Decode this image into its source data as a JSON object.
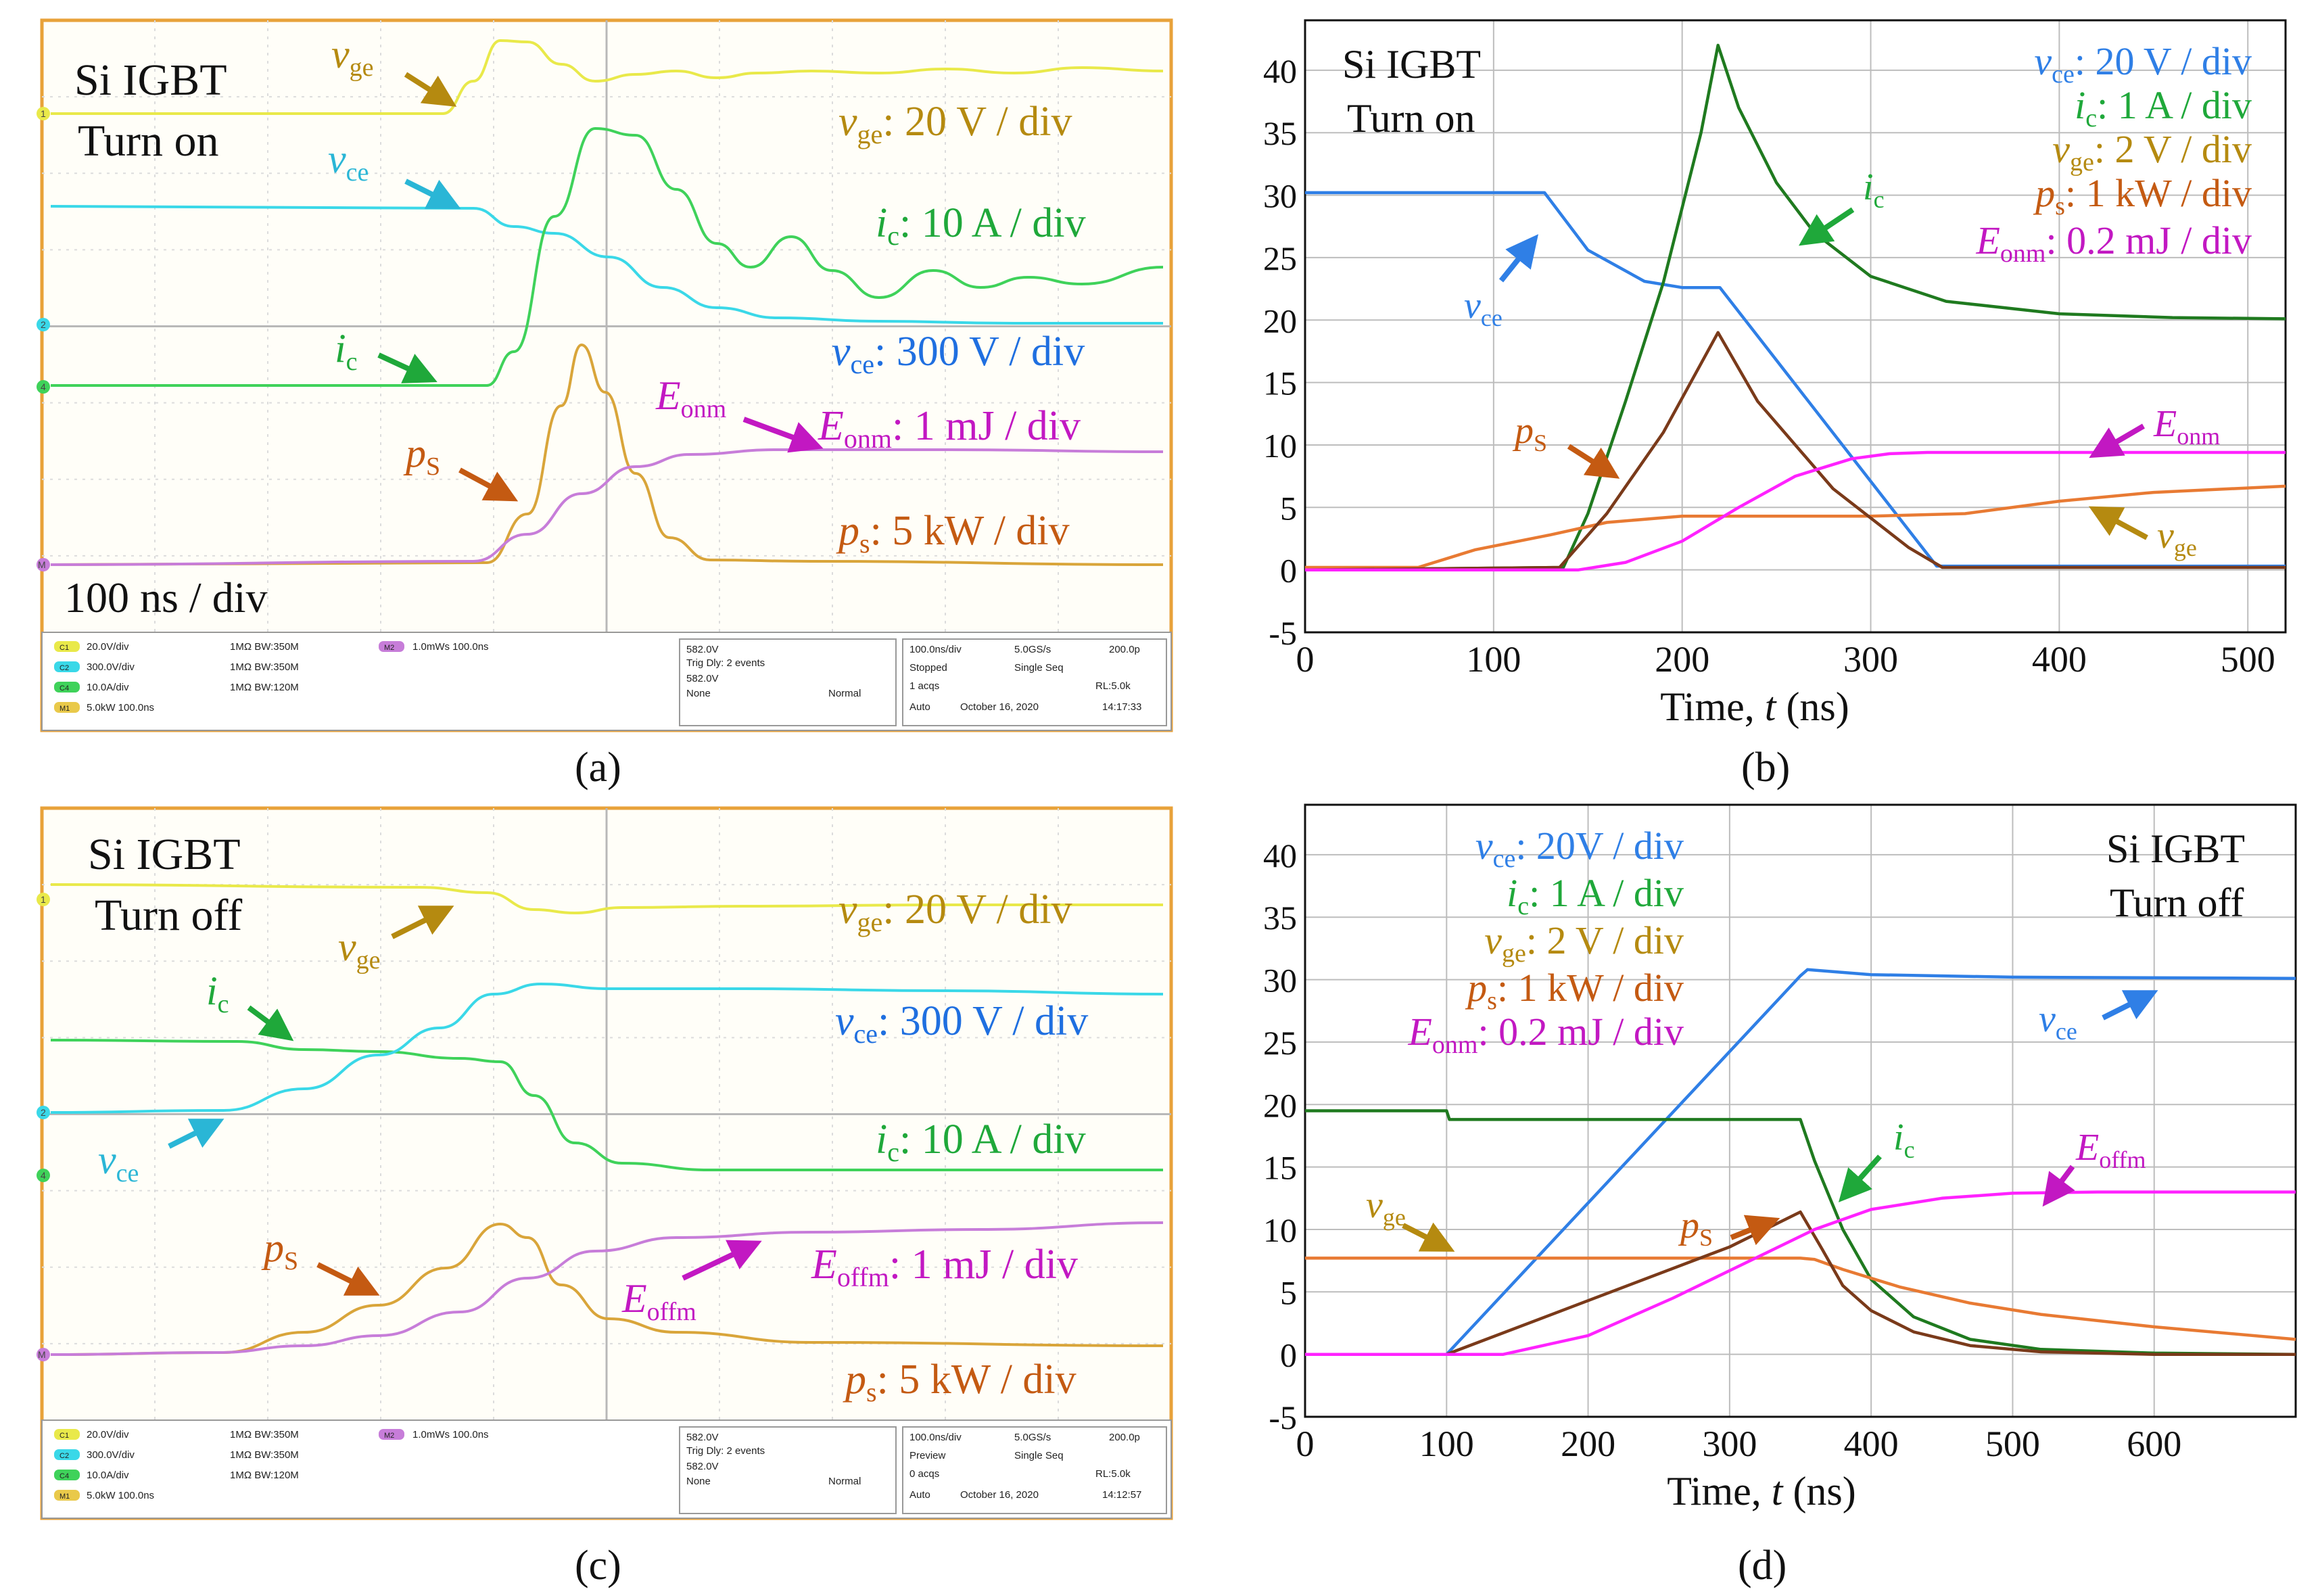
{
  "colors": {
    "vge": "#b8960c",
    "vge_scope": "#e9e94a",
    "vce_scope": "#3ad8e8",
    "ic_scope": "#3fd25a",
    "ps_scope": "#d9a53a",
    "E_scope": "#c77dd9",
    "vce_sim": "#2f7fe6",
    "ic_sim": "#1f7a1f",
    "vge_sim": "#e87a33",
    "ps_sim": "#7a3a1a",
    "E_sim": "#ff22ff",
    "vge_label": "#b58a10",
    "ic_label": "#1fa83a",
    "ps_label": "#c45a12",
    "E_label": "#c218c2",
    "vce_label": "#1f6fe0",
    "scope_frame": "#e8a23a"
  },
  "panels": {
    "a": {
      "caption": "(a)",
      "title_line1": "Si IGBT",
      "title_line2": "Turn on",
      "timebase": "100 ns / div",
      "scale_vge": ": 20 V / div",
      "scale_ic": ": 10 A / div",
      "scale_vce": ": 300 V / div",
      "scale_E": ": 1 mJ / div",
      "scale_ps": ": 5 kW / div",
      "label_vge": "v",
      "sub_ge": "ge",
      "label_vce": "v",
      "sub_ce": "ce",
      "label_ic": "i",
      "sub_c": "c",
      "label_ps": "p",
      "sub_S": "S",
      "sub_s": "s",
      "label_E": "E",
      "sub_onm": "onm",
      "status": {
        "ch1": "20.0V/div",
        "ch2": "300.0V/div",
        "ch4": "10.0A/div",
        "m1": "5.0kW  100.0ns",
        "imp1": "1MΩ  BW:350M",
        "imp2": "1MΩ  BW:350M",
        "imp4": "1MΩ  BW:120M",
        "m2": "1.0mWs 100.0ns",
        "trig_a": "582.0V",
        "trig_dly": "Trig Dly: 2 events",
        "trig_b": "582.0V",
        "trig_none": "None",
        "trig_mode": "Normal",
        "rate": "100.0ns/div",
        "srate": "5.0GS/s",
        "pts": "200.0p",
        "state": "Stopped",
        "seq": "Single Seq",
        "acqs": "1 acqs",
        "rl": "RL:5.0k",
        "mode": "Auto",
        "date": "October 16, 2020",
        "time": "14:17:33"
      }
    },
    "c": {
      "caption": "(c)",
      "title_line1": "Si IGBT",
      "title_line2": "Turn off",
      "scale_vge": ": 20 V / div",
      "scale_vce": ": 300 V / div",
      "scale_ic": ": 10 A / div",
      "scale_E": ": 1 mJ / div",
      "scale_ps": ": 5 kW / div",
      "sub_offm": "offm",
      "status": {
        "ch1": "20.0V/div",
        "ch2": "300.0V/div",
        "ch4": "10.0A/div",
        "m1": "5.0kW  100.0ns",
        "imp1": "1MΩ  BW:350M",
        "imp2": "1MΩ  BW:350M",
        "imp4": "1MΩ  BW:120M",
        "m2": "1.0mWs 100.0ns",
        "trig_a": "582.0V",
        "trig_dly": "Trig Dly: 2 events",
        "trig_b": "582.0V",
        "trig_none": "None",
        "trig_mode": "Normal",
        "rate": "100.0ns/div",
        "srate": "5.0GS/s",
        "pts": "200.0p",
        "state": "Preview",
        "seq": "Single Seq",
        "acqs": "0 acqs",
        "rl": "RL:5.0k",
        "mode": "Auto",
        "date": "October 16, 2020",
        "time": "14:12:57"
      }
    },
    "b": {
      "caption": "(b)",
      "title_line1": "Si IGBT",
      "title_line2": "Turn on",
      "xlabel_pre": "Time, ",
      "xlabel_var": "t",
      "xlabel_post": " (ns)",
      "leg_vce": ": 20 V / div",
      "leg_ic": ": 1 A / div",
      "leg_vge": ": 2 V / div",
      "leg_ps": ": 1 kW / div",
      "leg_E": ": 0.2 mJ / div"
    },
    "d": {
      "caption": "(d)",
      "title_line1": "Si IGBT",
      "title_line2": "Turn off",
      "xlabel_pre": "Time, ",
      "xlabel_var": "t",
      "xlabel_post": " (ns)",
      "leg_vce": ": 20V / div",
      "leg_ic": ": 1 A / div",
      "leg_vge": ": 2 V / div",
      "leg_ps": ": 1 kW / div",
      "leg_E": ": 0.2 mJ / div"
    }
  },
  "chart_data": [
    {
      "type": "line",
      "panel": "b",
      "title": "Si IGBT Turn on",
      "xlabel": "Time, t (ns)",
      "ylabel": "",
      "xlim": [
        0,
        520
      ],
      "ylim": [
        -5,
        44
      ],
      "xticks": [
        0,
        100,
        200,
        300,
        400,
        500
      ],
      "yticks": [
        -5,
        0,
        5,
        10,
        15,
        20,
        25,
        30,
        35,
        40
      ],
      "grid": true,
      "series": [
        {
          "name": "vce",
          "x": [
            0,
            127,
            150,
            180,
            200,
            220,
            335,
            520
          ],
          "y": [
            30.2,
            30.2,
            25.6,
            23.1,
            22.6,
            22.6,
            0.3,
            0.3
          ]
        },
        {
          "name": "ic",
          "x": [
            0,
            137,
            150,
            170,
            190,
            210,
            219,
            230,
            250,
            270,
            300,
            340,
            400,
            460,
            520
          ],
          "y": [
            0,
            0.2,
            4.5,
            13.5,
            23,
            35,
            42,
            37,
            31,
            27,
            23.5,
            21.5,
            20.5,
            20.2,
            20.1
          ]
        },
        {
          "name": "vge",
          "x": [
            0,
            60,
            90,
            130,
            160,
            200,
            300,
            350,
            400,
            450,
            520
          ],
          "y": [
            0.2,
            0.2,
            1.6,
            2.8,
            3.8,
            4.3,
            4.3,
            4.5,
            5.5,
            6.2,
            6.7
          ]
        },
        {
          "name": "ps",
          "x": [
            0,
            135,
            160,
            190,
            219,
            240,
            280,
            320,
            338,
            520
          ],
          "y": [
            0,
            0.2,
            4.5,
            11,
            19,
            13.5,
            6.5,
            1.8,
            0.2,
            0.2
          ]
        },
        {
          "name": "Eonm",
          "x": [
            0,
            145,
            170,
            200,
            230,
            260,
            290,
            310,
            330,
            520
          ],
          "y": [
            0,
            0,
            0.6,
            2.3,
            5.0,
            7.5,
            8.9,
            9.3,
            9.4,
            9.4
          ]
        }
      ]
    },
    {
      "type": "line",
      "panel": "d",
      "title": "Si IGBT Turn off",
      "xlabel": "Time, t (ns)",
      "ylabel": "",
      "xlim": [
        0,
        700
      ],
      "ylim": [
        -5,
        44
      ],
      "xticks": [
        0,
        100,
        200,
        300,
        400,
        500,
        600
      ],
      "yticks": [
        -5,
        0,
        5,
        10,
        15,
        20,
        25,
        30,
        35,
        40
      ],
      "grid": true,
      "series": [
        {
          "name": "vce",
          "x": [
            0,
            100,
            350,
            355,
            400,
            500,
            700
          ],
          "y": [
            0,
            0,
            30.3,
            30.8,
            30.4,
            30.2,
            30.1
          ]
        },
        {
          "name": "ic",
          "x": [
            0,
            100,
            102,
            350,
            360,
            380,
            400,
            430,
            470,
            520,
            600,
            700
          ],
          "y": [
            19.5,
            19.5,
            18.8,
            18.8,
            15.5,
            10,
            6,
            3,
            1.2,
            0.4,
            0.1,
            0
          ]
        },
        {
          "name": "vge",
          "x": [
            0,
            350,
            360,
            380,
            420,
            470,
            520,
            600,
            700
          ],
          "y": [
            7.7,
            7.7,
            7.6,
            6.8,
            5.4,
            4.1,
            3.2,
            2.2,
            1.2
          ]
        },
        {
          "name": "ps",
          "x": [
            0,
            100,
            200,
            300,
            350,
            365,
            380,
            400,
            430,
            470,
            520,
            600,
            700
          ],
          "y": [
            0,
            0,
            4.3,
            8.6,
            11.4,
            8.5,
            5.5,
            3.5,
            1.8,
            0.7,
            0.2,
            0,
            0
          ]
        },
        {
          "name": "Eoffm",
          "x": [
            0,
            140,
            200,
            260,
            320,
            360,
            400,
            450,
            500,
            560,
            700
          ],
          "y": [
            0,
            0,
            1.5,
            4.5,
            7.8,
            10.0,
            11.6,
            12.5,
            12.9,
            13.0,
            13.0
          ]
        }
      ]
    }
  ]
}
